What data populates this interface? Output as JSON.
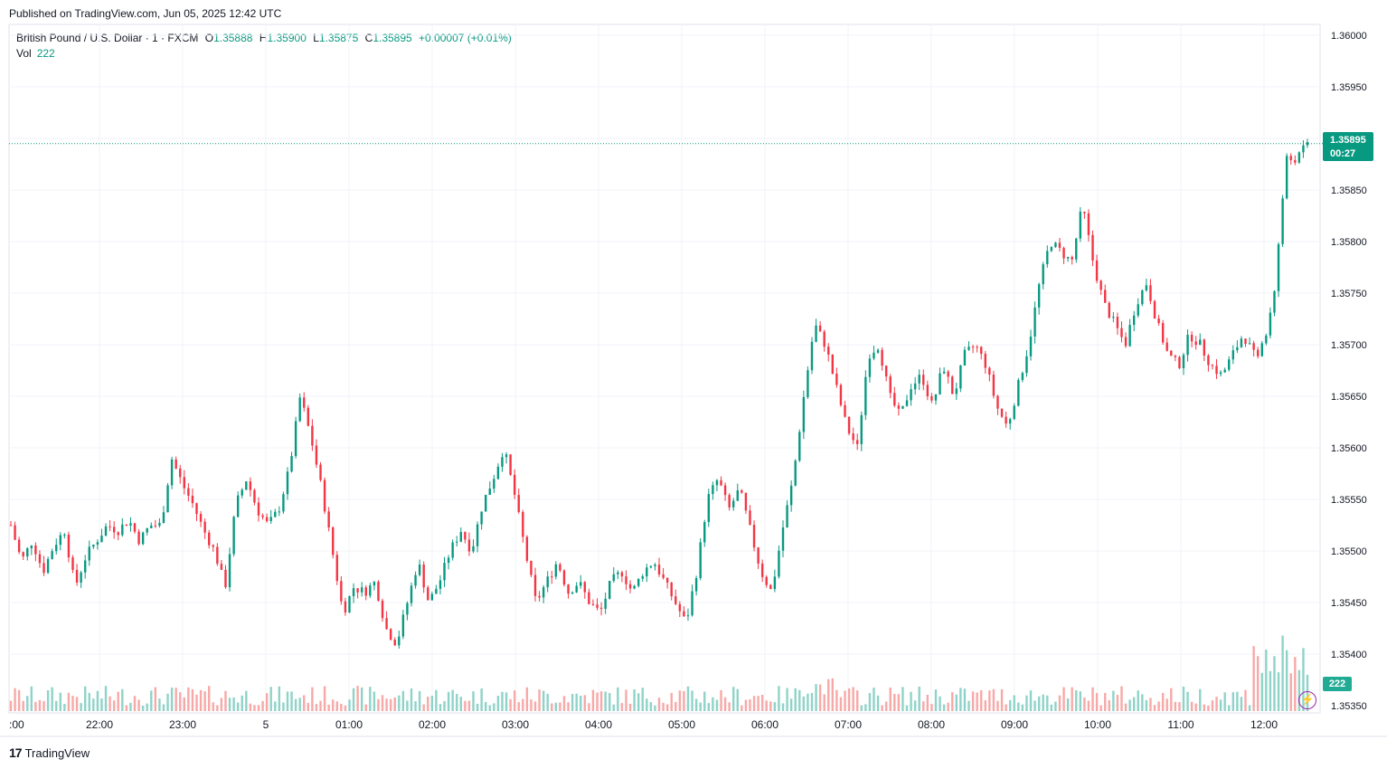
{
  "published": "Published on TradingView.com, Jun 05, 2025 12:42 UTC",
  "legend": {
    "symbol": "British Pound / U.S. Dollar · 1 · FXCM",
    "open_label": "O",
    "open": "1.35888",
    "high_label": "H",
    "high": "1.35900",
    "low_label": "L",
    "low": "1.35875",
    "close_label": "C",
    "close": "1.35895",
    "change": "+0.00007 (+0.01%)",
    "vol_label": "Vol",
    "vol": "222"
  },
  "price_tag": {
    "price": "1.35895",
    "countdown": "00:27"
  },
  "vol_tag": "222",
  "brand": "TradingView",
  "colors": {
    "up": "#089981",
    "down": "#f23645",
    "up_vol": "#8fd3c8",
    "down_vol": "#f7a9a7",
    "grid": "#f0f3fa"
  },
  "chart_data": {
    "type": "candlestick",
    "title": "British Pound / U.S. Dollar · 1 · FXCM",
    "y_ticks": [
      "1.36000",
      "1.35950",
      "1.35900",
      "1.35850",
      "1.35800",
      "1.35750",
      "1.35700",
      "1.35650",
      "1.35600",
      "1.35550",
      "1.35500",
      "1.35450",
      "1.35400",
      "1.35350"
    ],
    "ylim": [
      1.35335,
      1.36005
    ],
    "x_ticks": [
      ":00",
      "22:00",
      "23:00",
      "5",
      "01:00",
      "02:00",
      "03:00",
      "04:00",
      "05:00",
      "06:00",
      "07:00",
      "08:00",
      "09:00",
      "10:00",
      "11:00",
      "12:00"
    ],
    "current_price": 1.35895,
    "price_path_close": [
      1.35525,
      1.3549,
      1.3551,
      1.3548,
      1.35505,
      1.3552,
      1.35465,
      1.35495,
      1.3551,
      1.35525,
      1.3552,
      1.3553,
      1.3551,
      1.35525,
      1.35525,
      1.3559,
      1.35565,
      1.35545,
      1.3552,
      1.355,
      1.35465,
      1.35545,
      1.3557,
      1.3554,
      1.35525,
      1.3554,
      1.3558,
      1.3565,
      1.3561,
      1.3556,
      1.355,
      1.3544,
      1.35465,
      1.3546,
      1.3547,
      1.35425,
      1.3541,
      1.3545,
      1.3549,
      1.3545,
      1.3547,
      1.355,
      1.3552,
      1.355,
      1.35545,
      1.3557,
      1.356,
      1.35555,
      1.355,
      1.3545,
      1.3547,
      1.3549,
      1.3546,
      1.3547,
      1.3545,
      1.3544,
      1.3547,
      1.3548,
      1.3546,
      1.3548,
      1.3549,
      1.3547,
      1.3545,
      1.3543,
      1.3548,
      1.3555,
      1.3557,
      1.3554,
      1.3556,
      1.3552,
      1.3548,
      1.3546,
      1.3552,
      1.3557,
      1.3565,
      1.3572,
      1.357,
      1.3566,
      1.3562,
      1.356,
      1.3569,
      1.357,
      1.3565,
      1.3563,
      1.3566,
      1.3567,
      1.3564,
      1.3568,
      1.3565,
      1.3569,
      1.357,
      1.3568,
      1.3564,
      1.3562,
      1.3566,
      1.357,
      1.3576,
      1.358,
      1.3579,
      1.3578,
      1.35835,
      1.3578,
      1.3574,
      1.3572,
      1.357,
      1.3574,
      1.3576,
      1.3572,
      1.3569,
      1.3568,
      1.3571,
      1.357,
      1.3568,
      1.3567,
      1.3569,
      1.3571,
      1.3569,
      1.357,
      1.3576,
      1.3588,
      1.3588,
      1.35895
    ]
  }
}
